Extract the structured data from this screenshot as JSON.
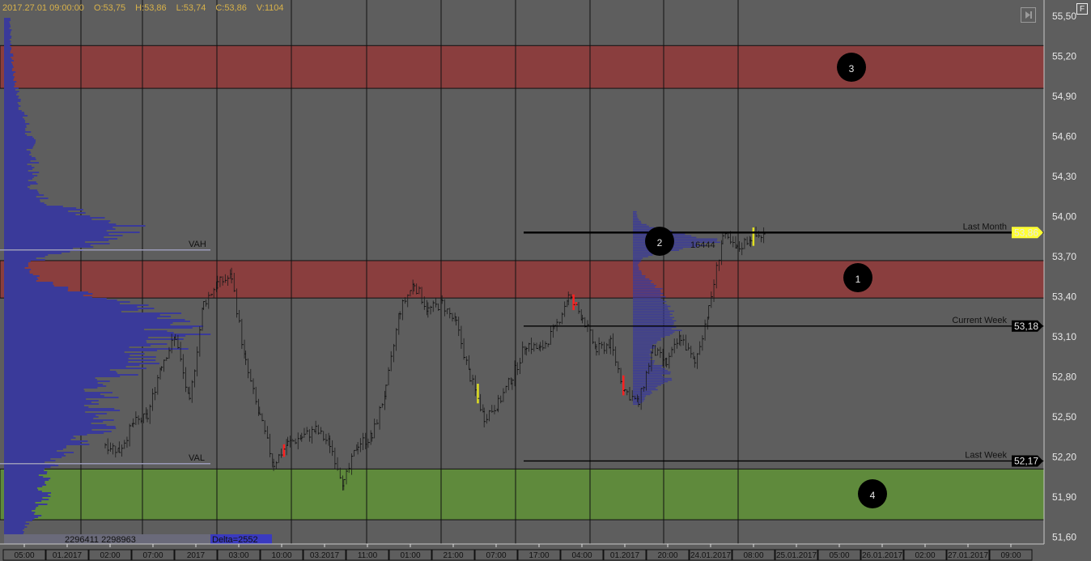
{
  "header": {
    "datetime": "2017.27.01 09:00:00",
    "open": "O:53,75",
    "high": "H:53,86",
    "low": "L:53,74",
    "close": "C:53,86",
    "volume": "V:1104"
  },
  "buttons": {
    "scroll_end": "scroll-to-end",
    "f_label": "F"
  },
  "colors": {
    "background": "#5e5e5e",
    "resistance_zone": "#8a3e3e",
    "support_zone": "#5f8a3c",
    "profile": "#3a3a9a",
    "current_price": "#ffff33"
  },
  "chart_data": {
    "type": "candlestick",
    "ylim": [
      51.5,
      55.6
    ],
    "y_ticks": [
      "55,50",
      "55,20",
      "54,90",
      "54,60",
      "54,30",
      "54,00",
      "53,70",
      "53,40",
      "53,10",
      "52,80",
      "52,50",
      "52,20",
      "51,90",
      "51,60"
    ],
    "x_tick_labels": [
      "05:00",
      "01.2017",
      "02:00",
      "07:00",
      "2017",
      "03:00",
      "10:00",
      "03.2017",
      "11:00",
      "01:00",
      "21:00",
      "07:00",
      "17:00",
      "04:00",
      "01.2017",
      "20:00",
      "24.01.2017",
      "08:00",
      "25.01.2017",
      "05:00",
      "26.01.2017",
      "02:00",
      "27.01.2017",
      "09:00"
    ],
    "closes": [
      52.3,
      52.25,
      52.45,
      52.5,
      52.9,
      53.1,
      52.6,
      53.35,
      53.5,
      53.55,
      52.9,
      52.5,
      52.15,
      52.3,
      52.35,
      52.4,
      52.3,
      52.0,
      52.3,
      52.35,
      52.7,
      53.3,
      53.5,
      53.3,
      53.35,
      53.2,
      52.8,
      52.5,
      52.6,
      52.8,
      53.05,
      53.0,
      53.15,
      53.4,
      53.25,
      53.0,
      53.05,
      52.7,
      52.6,
      53.0,
      52.9,
      53.1,
      52.9,
      53.3,
      53.85,
      53.75,
      53.85,
      53.86
    ],
    "zones": [
      {
        "label": "3",
        "from": 54.96,
        "to": 55.28,
        "kind": "resistance"
      },
      {
        "label": "1",
        "from": 53.39,
        "to": 53.67,
        "kind": "resistance"
      },
      {
        "label": "4",
        "from": 51.73,
        "to": 52.11,
        "kind": "support"
      }
    ],
    "levels": [
      {
        "name": "Last Month",
        "price": 53.88,
        "tag": "53,86",
        "tag_color": "#ffff33"
      },
      {
        "name": "Current Week",
        "price": 53.18,
        "tag": "53,18",
        "tag_color": "#000000"
      },
      {
        "name": "Last Week",
        "price": 52.17,
        "tag": "52,17",
        "tag_color": "#000000"
      }
    ],
    "profile_labels": {
      "vah": "VAH",
      "val": "VAL",
      "vah_price": 53.75,
      "val_price": 52.15
    },
    "session_profile_volume": "16444",
    "marker_2": "2",
    "volume_totals": "2296411 2298963",
    "delta": "Delta=2552"
  }
}
